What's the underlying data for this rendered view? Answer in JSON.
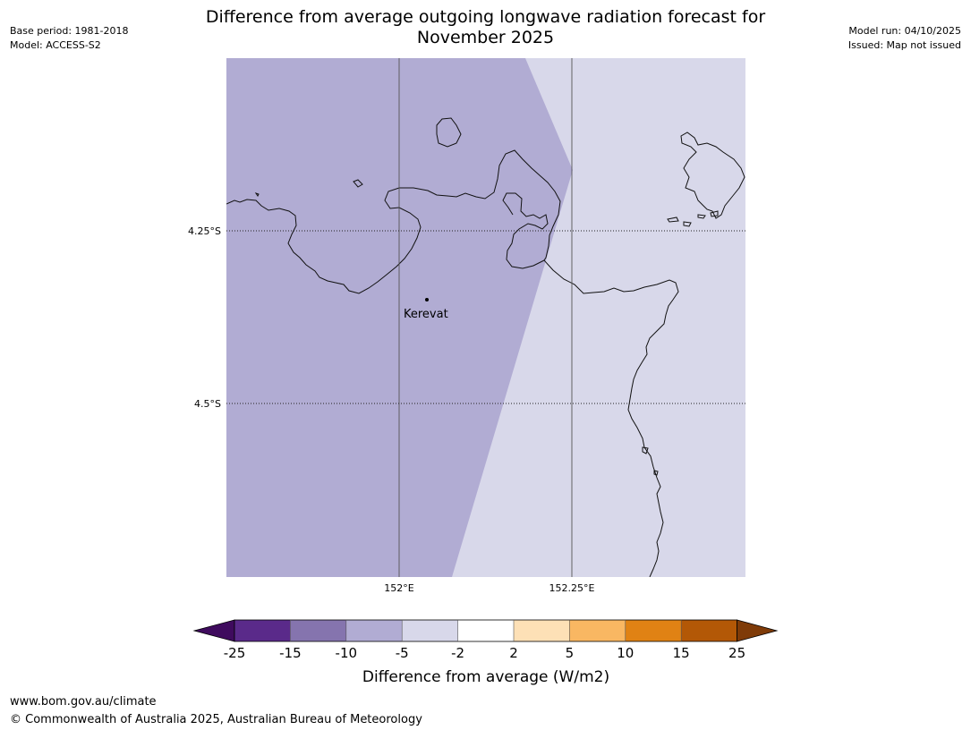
{
  "title_line1": "Difference from average outgoing longwave radiation forecast for",
  "title_line2": "November 2025",
  "base_period": "Base period: 1981-2018",
  "model": "Model: ACCESS-S2",
  "model_run": "Model run: 04/10/2025",
  "issued": "Issued: Map not issued",
  "map": {
    "lat_labels": [
      "4.25°S",
      "4.5°S"
    ],
    "lon_labels": [
      "152°E",
      "152.25°E"
    ],
    "place_name": "Kerevat",
    "colors": {
      "strong_negative": "#b1acd3",
      "weak_negative": "#d8d8ea"
    }
  },
  "colorbar": {
    "ticks": [
      "-25",
      "-15",
      "-10",
      "-5",
      "-2",
      "2",
      "5",
      "10",
      "15",
      "25"
    ],
    "colors": [
      "#3f0b5e",
      "#5a2a8a",
      "#8574ae",
      "#b1acd3",
      "#d8d8ea",
      "#ffffff",
      "#fde0b6",
      "#f9b762",
      "#e08214",
      "#b35806",
      "#7f3b08"
    ],
    "label": "Difference from average (W/m2)"
  },
  "footer": {
    "url": "www.bom.gov.au/climate",
    "copyright": "© Commonwealth of Australia 2025, Australian Bureau of Meteorology"
  }
}
